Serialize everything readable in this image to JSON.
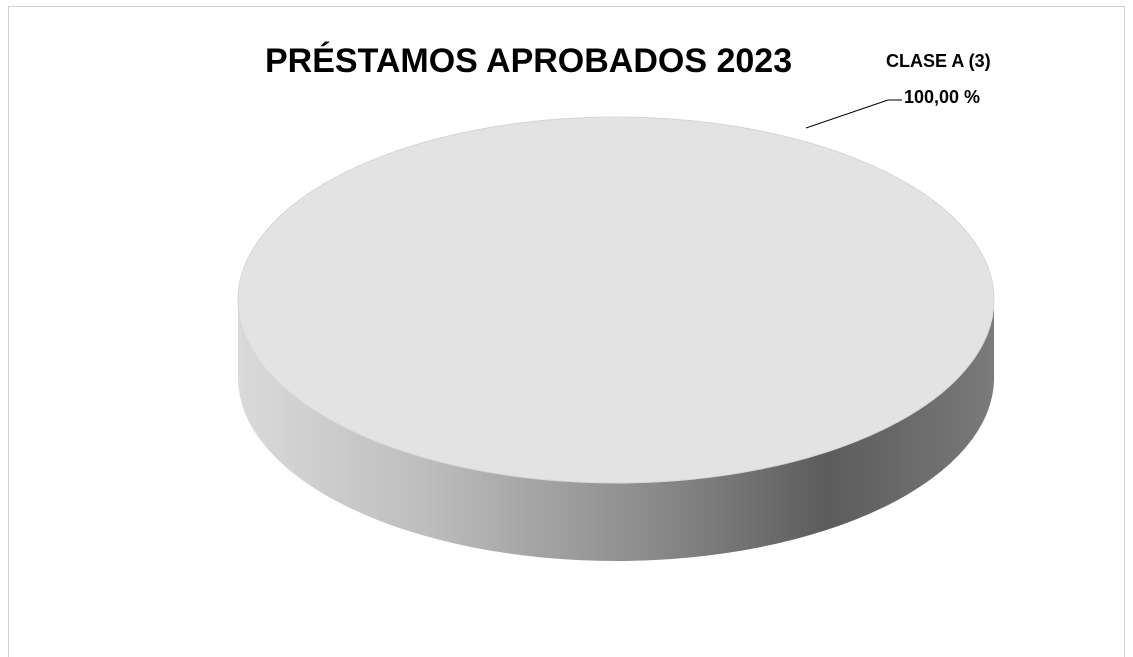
{
  "chart_data": {
    "type": "pie",
    "title": "PRÉSTAMOS APROBADOS 2023",
    "categories": [
      "CLASE A (3)"
    ],
    "values": [
      100
    ],
    "value_labels": [
      "100,00 %"
    ],
    "colors": {
      "slice_top": "#e3e3e3",
      "side_light": "#d2d2d2",
      "side_dark": "#585858",
      "leader_line": "#000000"
    },
    "legend": "none"
  }
}
